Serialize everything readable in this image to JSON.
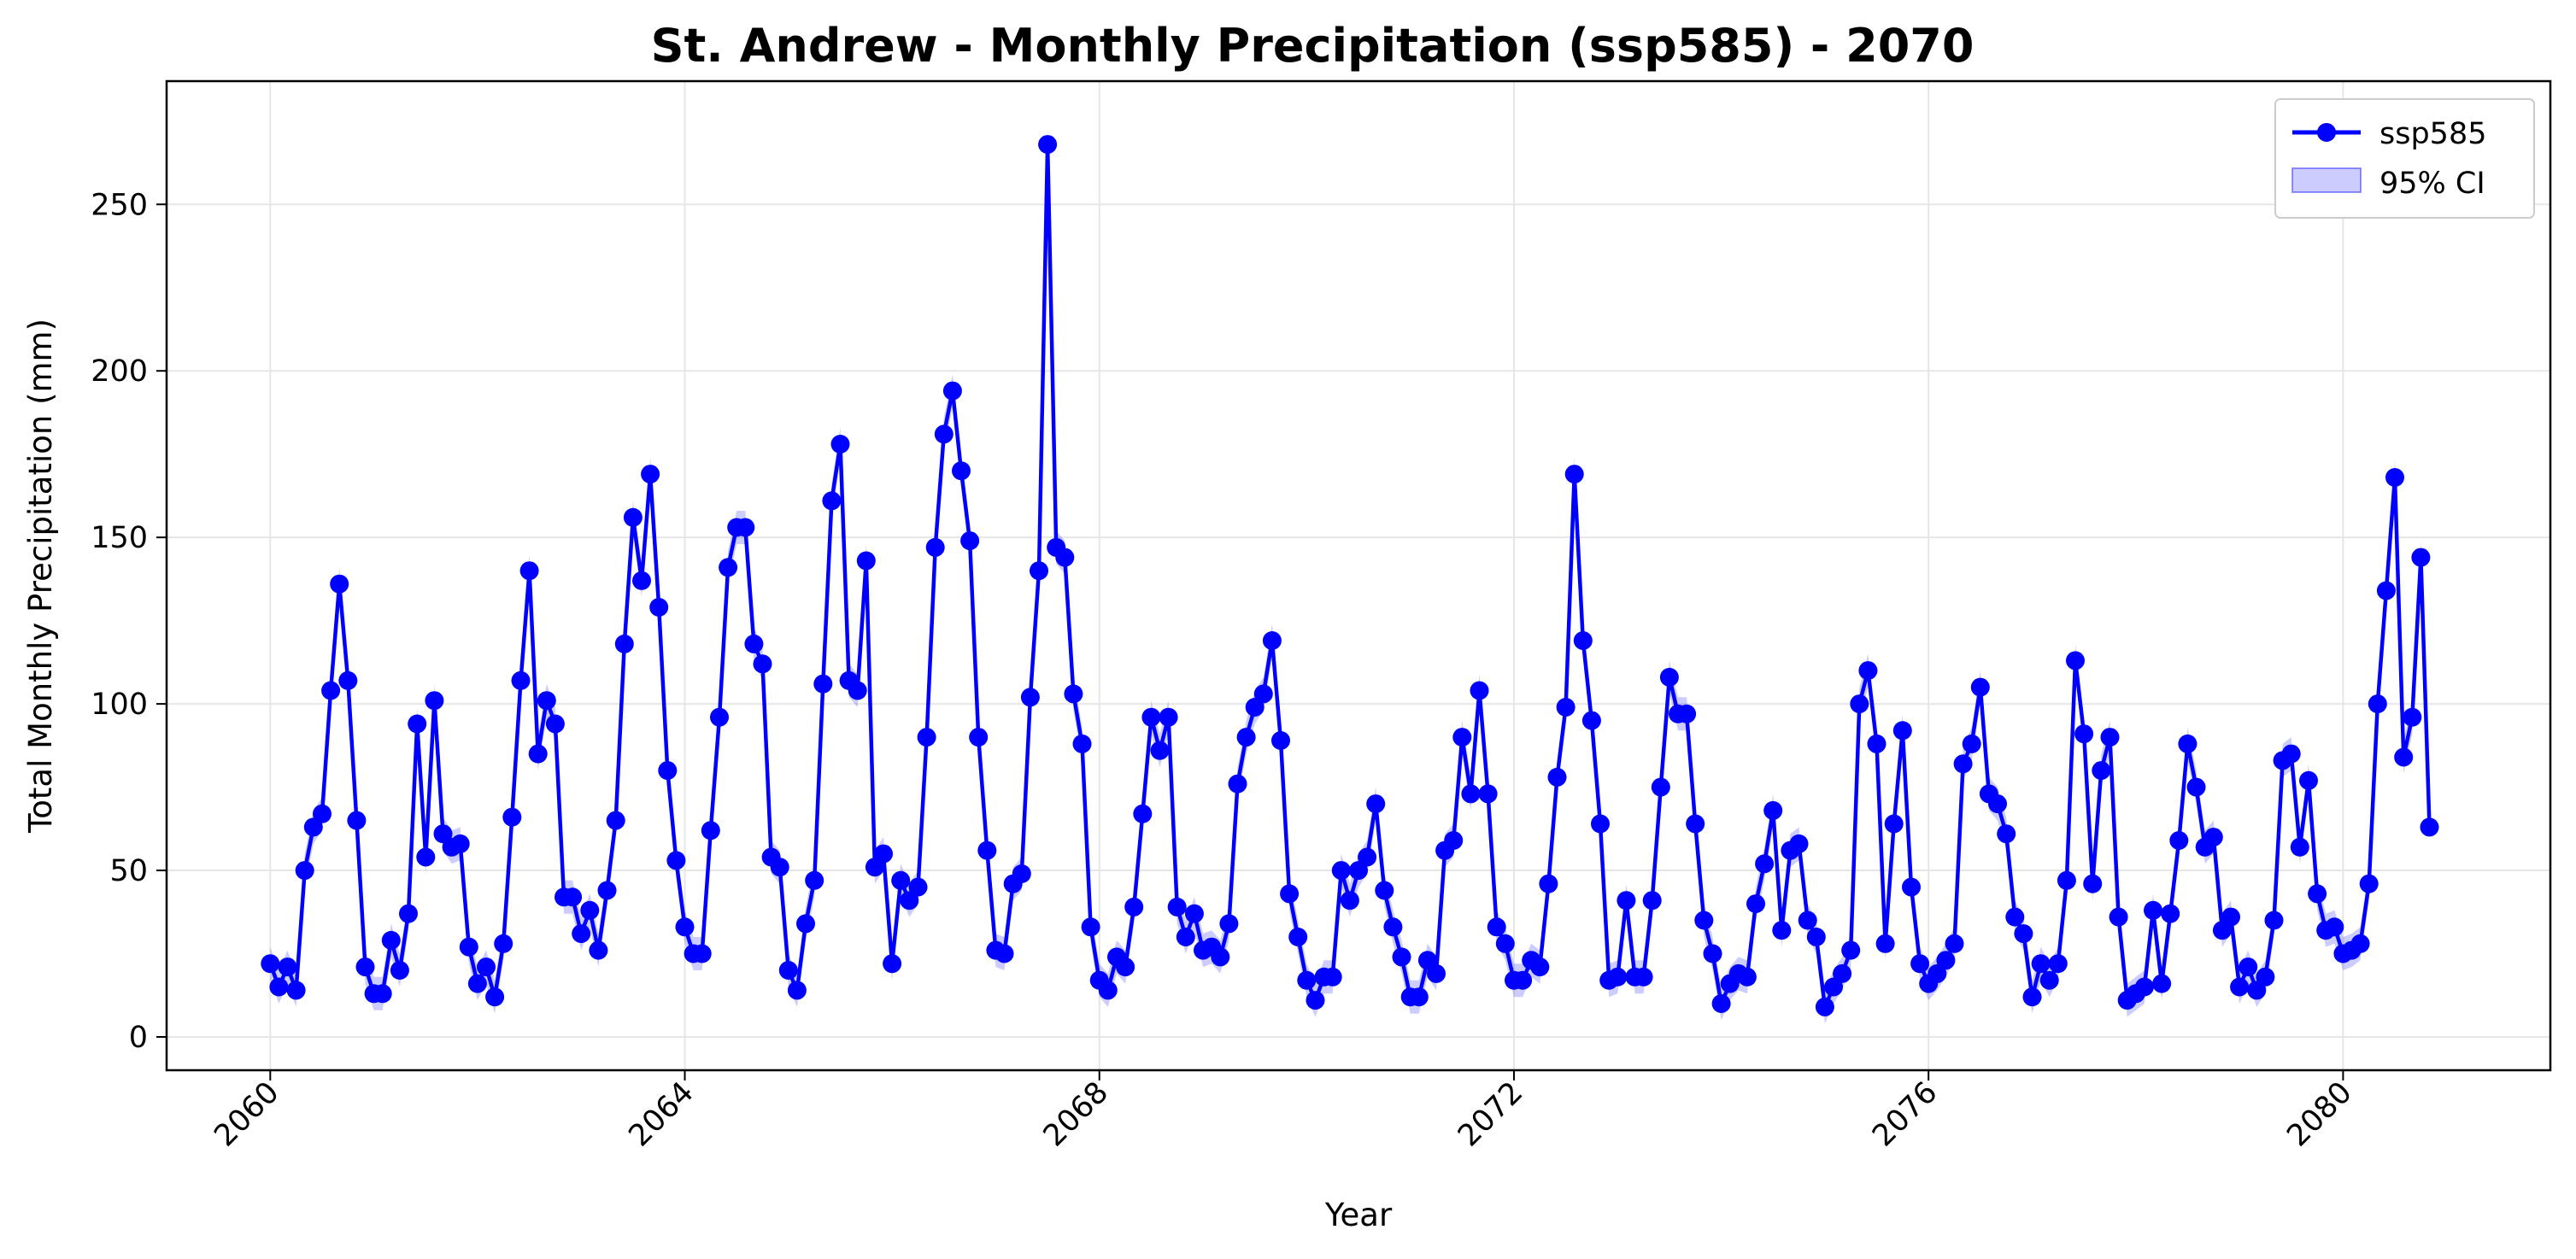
{
  "chart_data": {
    "type": "line",
    "title": "St. Andrew - Monthly Precipitation (ssp585) - 2070",
    "xlabel": "Year",
    "ylabel": "Total Monthly Precipitation (mm)",
    "xlim": [
      2059.0,
      2082.0
    ],
    "ylim": [
      -10,
      287
    ],
    "x_ticks": [
      2060,
      2064,
      2068,
      2072,
      2076,
      2080
    ],
    "y_ticks": [
      0,
      50,
      100,
      150,
      200,
      250
    ],
    "grid": true,
    "legend_position": "top-right",
    "series": [
      {
        "name": "ssp585",
        "color": "#0000ff",
        "x_start": 2060.0,
        "x_step_months": 1,
        "values": [
          22,
          15,
          21,
          14,
          50,
          63,
          67,
          104,
          136,
          107,
          65,
          21,
          13,
          13,
          29,
          20,
          37,
          94,
          54,
          101,
          61,
          57,
          58,
          27,
          16,
          21,
          12,
          28,
          66,
          107,
          140,
          85,
          101,
          94,
          42,
          42,
          31,
          38,
          26,
          44,
          65,
          118,
          156,
          137,
          169,
          129,
          80,
          53,
          33,
          25,
          25,
          62,
          96,
          141,
          153,
          153,
          118,
          112,
          54,
          51,
          20,
          14,
          34,
          47,
          106,
          161,
          178,
          107,
          104,
          143,
          51,
          55,
          22,
          47,
          41,
          45,
          90,
          147,
          181,
          194,
          170,
          149,
          90,
          56,
          26,
          25,
          46,
          49,
          102,
          140,
          268,
          147,
          144,
          103,
          88,
          33,
          17,
          14,
          24,
          21,
          39,
          67,
          96,
          86,
          96,
          39,
          30,
          37,
          26,
          27,
          24,
          34,
          76,
          90,
          99,
          103,
          119,
          89,
          43,
          30,
          17,
          11,
          18,
          18,
          50,
          41,
          50,
          54,
          70,
          44,
          33,
          24,
          12,
          12,
          23,
          19,
          56,
          59,
          90,
          73,
          104,
          73,
          33,
          28,
          17,
          17,
          23,
          21,
          46,
          78,
          99,
          169,
          119,
          95,
          64,
          17,
          18,
          41,
          18,
          18,
          41,
          75,
          108,
          97,
          97,
          64,
          35,
          25,
          10,
          16,
          19,
          18,
          40,
          52,
          68,
          32,
          56,
          58,
          35,
          30,
          9,
          15,
          19,
          26,
          100,
          110,
          88,
          28,
          64,
          92,
          45,
          22,
          16,
          19,
          23,
          28,
          82,
          88,
          105,
          73,
          70,
          61,
          36,
          31,
          12,
          22,
          17,
          22,
          47,
          113,
          91,
          46,
          80,
          90,
          36,
          11,
          13,
          15,
          38,
          16,
          37,
          59,
          88,
          75,
          57,
          60,
          32,
          36,
          15,
          21,
          14,
          18,
          35,
          83,
          85,
          57,
          77,
          43,
          32,
          33,
          25,
          26,
          28,
          46,
          100,
          134,
          168,
          84,
          96,
          144,
          63
        ]
      }
    ],
    "confidence_band": {
      "name": "95% CI",
      "color": "#0000ff",
      "opacity": 0.2,
      "half_width_mm": 5
    }
  }
}
